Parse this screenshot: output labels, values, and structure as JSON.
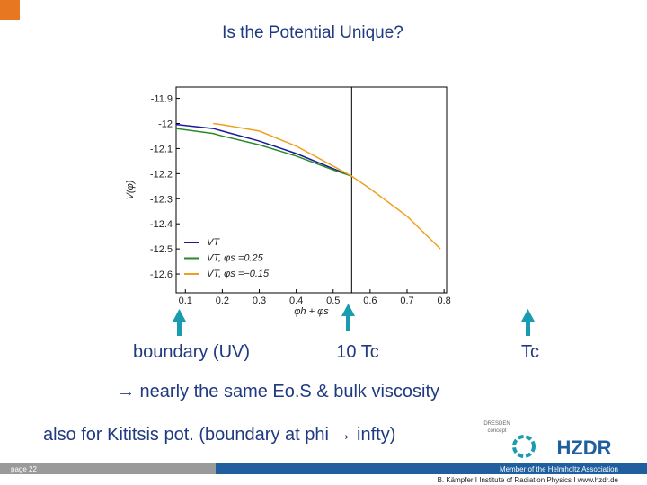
{
  "slide": {
    "title": "Is the Potential Unique?",
    "markers": [
      "boundary (UV)",
      "10 Tc",
      "Tc"
    ],
    "note": "→ nearly the same Eo.S & bulk viscosity",
    "note2": "also for Kititsis pot. (boundary at phi → infty)",
    "page": "page 22",
    "footer": [
      "Member of the Helmholtz Association",
      "B. Kämpfer  I  Institute of Radiation Physics  I  www.hzdr.de"
    ],
    "logos": [
      "DRESDEN",
      "concept",
      "HZDR"
    ]
  },
  "chart_data": {
    "type": "line",
    "xlabel": "φh + φs",
    "ylabel": "V(φ)",
    "x": [
      0.075,
      0.175,
      0.2,
      0.3,
      0.4,
      0.5,
      0.55,
      0.6,
      0.7,
      0.79
    ],
    "series": [
      {
        "name": "VT",
        "color": "#1a1a9c",
        "values": [
          -12.004,
          -12.02,
          -12.03,
          -12.07,
          -12.12,
          -12.18,
          -12.21,
          null,
          null,
          null
        ]
      },
      {
        "name": "VT, φs =0.25",
        "color": "#2a8a2a",
        "values": [
          -12.02,
          -12.04,
          -12.05,
          -12.085,
          -12.13,
          -12.185,
          -12.21,
          null,
          null,
          null
        ]
      },
      {
        "name": "VT, φs =−0.15",
        "color": "#f0a020",
        "values": [
          null,
          -12.0,
          -12.005,
          -12.03,
          -12.09,
          -12.17,
          -12.21,
          -12.26,
          -12.37,
          -12.5
        ]
      }
    ],
    "vline": 0.55,
    "xlim": [
      0.075,
      0.807
    ],
    "ylim": [
      -12.675,
      -11.855
    ],
    "xticks": [
      0.1,
      0.2,
      0.3,
      0.4,
      0.5,
      0.6,
      0.7,
      0.8
    ],
    "yticks": [
      -11.9,
      -12.0,
      -12.1,
      -12.2,
      -12.3,
      -12.4,
      -12.5,
      -12.6
    ],
    "legend": "lower left"
  }
}
